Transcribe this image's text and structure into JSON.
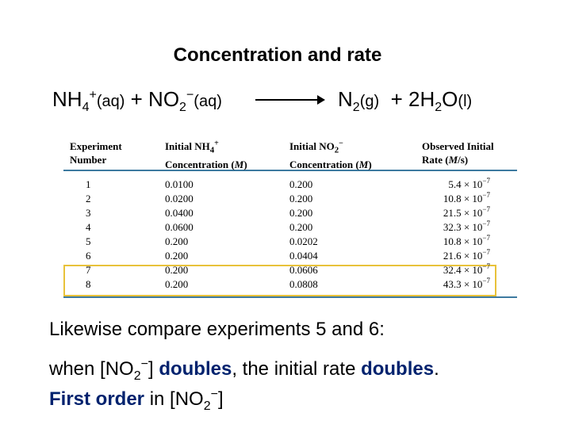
{
  "title": "Concentration and rate",
  "equation": {
    "reactant1_formula": "NH",
    "reactant1_sub": "4",
    "reactant1_charge": "+",
    "reactant1_state": "(aq)",
    "plus": "+",
    "reactant2_formula": "NO",
    "reactant2_sub": "2",
    "reactant2_charge": "−",
    "reactant2_state": "(aq)",
    "product1_formula": "N",
    "product1_sub": "2",
    "product1_state": "(g)",
    "plus2": "+",
    "product2_coef": "2H",
    "product2_sub": "2",
    "product2_formula": "O",
    "product2_state": "(l)"
  },
  "table": {
    "headers": {
      "col1_line1": "Experiment",
      "col1_line2": "Number",
      "col2_line1": "Initial NH",
      "col2_sub": "4",
      "col2_sup": "+",
      "col2_line2": "Concentration (",
      "col2_unit": "M",
      "col2_close": ")",
      "col3_line1": "Initial NO",
      "col3_sub": "2",
      "col3_sup": "−",
      "col3_line2": "Concentration (",
      "col3_unit": "M",
      "col3_close": ")",
      "col4_line1": "Observed Initial",
      "col4_line2": "Rate (",
      "col4_unit": "M",
      "col4_close": "/s)"
    },
    "rows": [
      {
        "exp": "1",
        "nh4": "0.0100",
        "no2": "0.200",
        "rate": "5.4 × 10",
        "exp_sup": "−7"
      },
      {
        "exp": "2",
        "nh4": "0.0200",
        "no2": "0.200",
        "rate": "10.8 × 10",
        "exp_sup": "−7"
      },
      {
        "exp": "3",
        "nh4": "0.0400",
        "no2": "0.200",
        "rate": "21.5 × 10",
        "exp_sup": "−7"
      },
      {
        "exp": "4",
        "nh4": "0.0600",
        "no2": "0.200",
        "rate": "32.3 × 10",
        "exp_sup": "−7"
      },
      {
        "exp": "5",
        "nh4": "0.200",
        "no2": "0.0202",
        "rate": "10.8 × 10",
        "exp_sup": "−7"
      },
      {
        "exp": "6",
        "nh4": "0.200",
        "no2": "0.0404",
        "rate": "21.6 × 10",
        "exp_sup": "−7"
      },
      {
        "exp": "7",
        "nh4": "0.200",
        "no2": "0.0606",
        "rate": "32.4 × 10",
        "exp_sup": "−7"
      },
      {
        "exp": "8",
        "nh4": "0.200",
        "no2": "0.0808",
        "rate": "43.3 × 10",
        "exp_sup": "−7"
      }
    ],
    "highlight_color": "#e8c23a",
    "rule_color": "#3d7aa0"
  },
  "text": {
    "line1": "Likewise compare experiments 5 and 6:",
    "line2_a": "when [NO",
    "line2_sub": "2",
    "line2_sup": "−",
    "line2_b": "] ",
    "line2_bold1": "doubles",
    "line2_c": ", the initial rate ",
    "line2_bold2": "doubles",
    "line2_d": ".",
    "line3_bold": "First order",
    "line3_a": " in [NO",
    "line3_sub": "2",
    "line3_sup": "−",
    "line3_b": "]",
    "emphasis_color": "#00226e"
  }
}
